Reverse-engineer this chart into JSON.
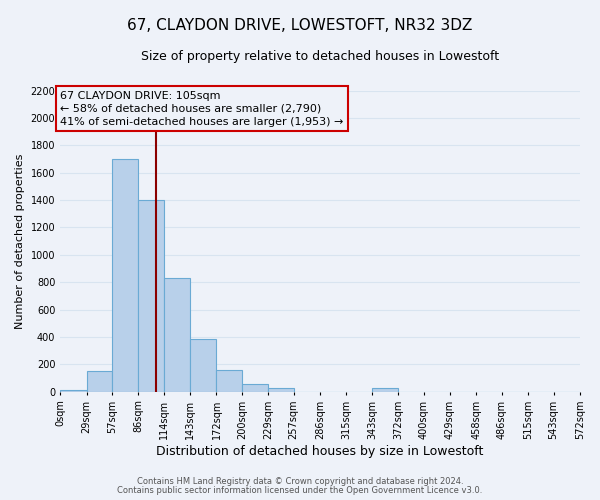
{
  "title": "67, CLAYDON DRIVE, LOWESTOFT, NR32 3DZ",
  "subtitle": "Size of property relative to detached houses in Lowestoft",
  "xlabel": "Distribution of detached houses by size in Lowestoft",
  "ylabel": "Number of detached properties",
  "bin_edges": [
    0,
    29,
    57,
    86,
    114,
    143,
    172,
    200,
    229,
    257,
    286,
    315,
    343,
    372,
    400,
    429,
    458,
    486,
    515,
    543,
    572
  ],
  "bin_labels": [
    "0sqm",
    "29sqm",
    "57sqm",
    "86sqm",
    "114sqm",
    "143sqm",
    "172sqm",
    "200sqm",
    "229sqm",
    "257sqm",
    "286sqm",
    "315sqm",
    "343sqm",
    "372sqm",
    "400sqm",
    "429sqm",
    "458sqm",
    "486sqm",
    "515sqm",
    "543sqm",
    "572sqm"
  ],
  "bar_heights": [
    10,
    155,
    1700,
    1400,
    830,
    385,
    160,
    60,
    25,
    0,
    0,
    0,
    25,
    0,
    0,
    0,
    0,
    0,
    0,
    0
  ],
  "bar_color": "#b8d0ea",
  "bar_edgecolor": "#6aaad4",
  "property_line_x": 105,
  "property_line_color": "#8b0000",
  "ylim": [
    0,
    2200
  ],
  "yticks": [
    0,
    200,
    400,
    600,
    800,
    1000,
    1200,
    1400,
    1600,
    1800,
    2000,
    2200
  ],
  "annotation_line1": "67 CLAYDON DRIVE: 105sqm",
  "annotation_line2": "← 58% of detached houses are smaller (2,790)",
  "annotation_line3": "41% of semi-detached houses are larger (1,953) →",
  "annotation_box_edgecolor": "#cc0000",
  "footer_line1": "Contains HM Land Registry data © Crown copyright and database right 2024.",
  "footer_line2": "Contains public sector information licensed under the Open Government Licence v3.0.",
  "background_color": "#eef2f9",
  "grid_color": "#d8e4f0",
  "title_fontsize": 11,
  "subtitle_fontsize": 9,
  "xlabel_fontsize": 9,
  "ylabel_fontsize": 8,
  "tick_fontsize": 7,
  "annotation_fontsize": 8,
  "footer_fontsize": 6
}
